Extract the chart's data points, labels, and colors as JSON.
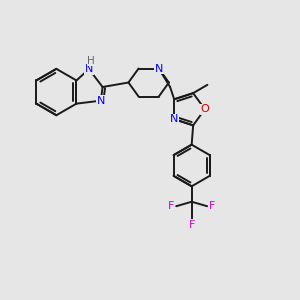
{
  "bg_color": "#e6e6e6",
  "bond_color": "#1a1a1a",
  "bond_lw": 1.4,
  "N_color": "#0000ee",
  "O_color": "#cc0000",
  "F_color": "#cc00cc",
  "C_color": "#1a1a1a",
  "H_color": "#666666",
  "figsize": [
    3.0,
    3.0
  ],
  "dpi": 100,
  "xlim": [
    0,
    10
  ],
  "ylim": [
    0,
    10
  ]
}
